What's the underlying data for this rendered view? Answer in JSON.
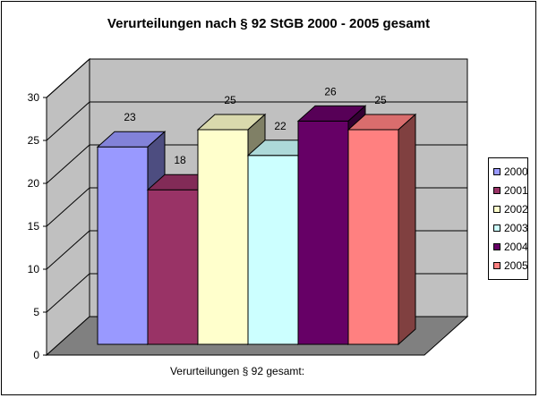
{
  "chart_data": {
    "type": "bar",
    "title": "Verurteilungen nach § 92 StGB 2000 - 2005 gesamt",
    "xlabel": "Verurteilungen § 92 gesamt:",
    "ylabel": "",
    "ylim": [
      0,
      30
    ],
    "yticks": [
      "0",
      "5",
      "10",
      "15",
      "20",
      "25",
      "30"
    ],
    "grid": true,
    "legend_position": "right",
    "categories": [
      "Verurteilungen § 92 gesamt:"
    ],
    "series": [
      {
        "name": "2000",
        "values": [
          23
        ],
        "color": "#9999ff"
      },
      {
        "name": "2001",
        "values": [
          18
        ],
        "color": "#993366"
      },
      {
        "name": "2002",
        "values": [
          25
        ],
        "color": "#ffffcc"
      },
      {
        "name": "2003",
        "values": [
          22
        ],
        "color": "#ccffff"
      },
      {
        "name": "2004",
        "values": [
          26
        ],
        "color": "#660066"
      },
      {
        "name": "2005",
        "values": [
          25
        ],
        "color": "#ff8080"
      }
    ],
    "data_labels": [
      "23",
      "18",
      "25",
      "22",
      "26",
      "25"
    ]
  },
  "colors": {
    "wall": "#c0c0c0",
    "floor": "#808080",
    "gridline": "#000000"
  }
}
